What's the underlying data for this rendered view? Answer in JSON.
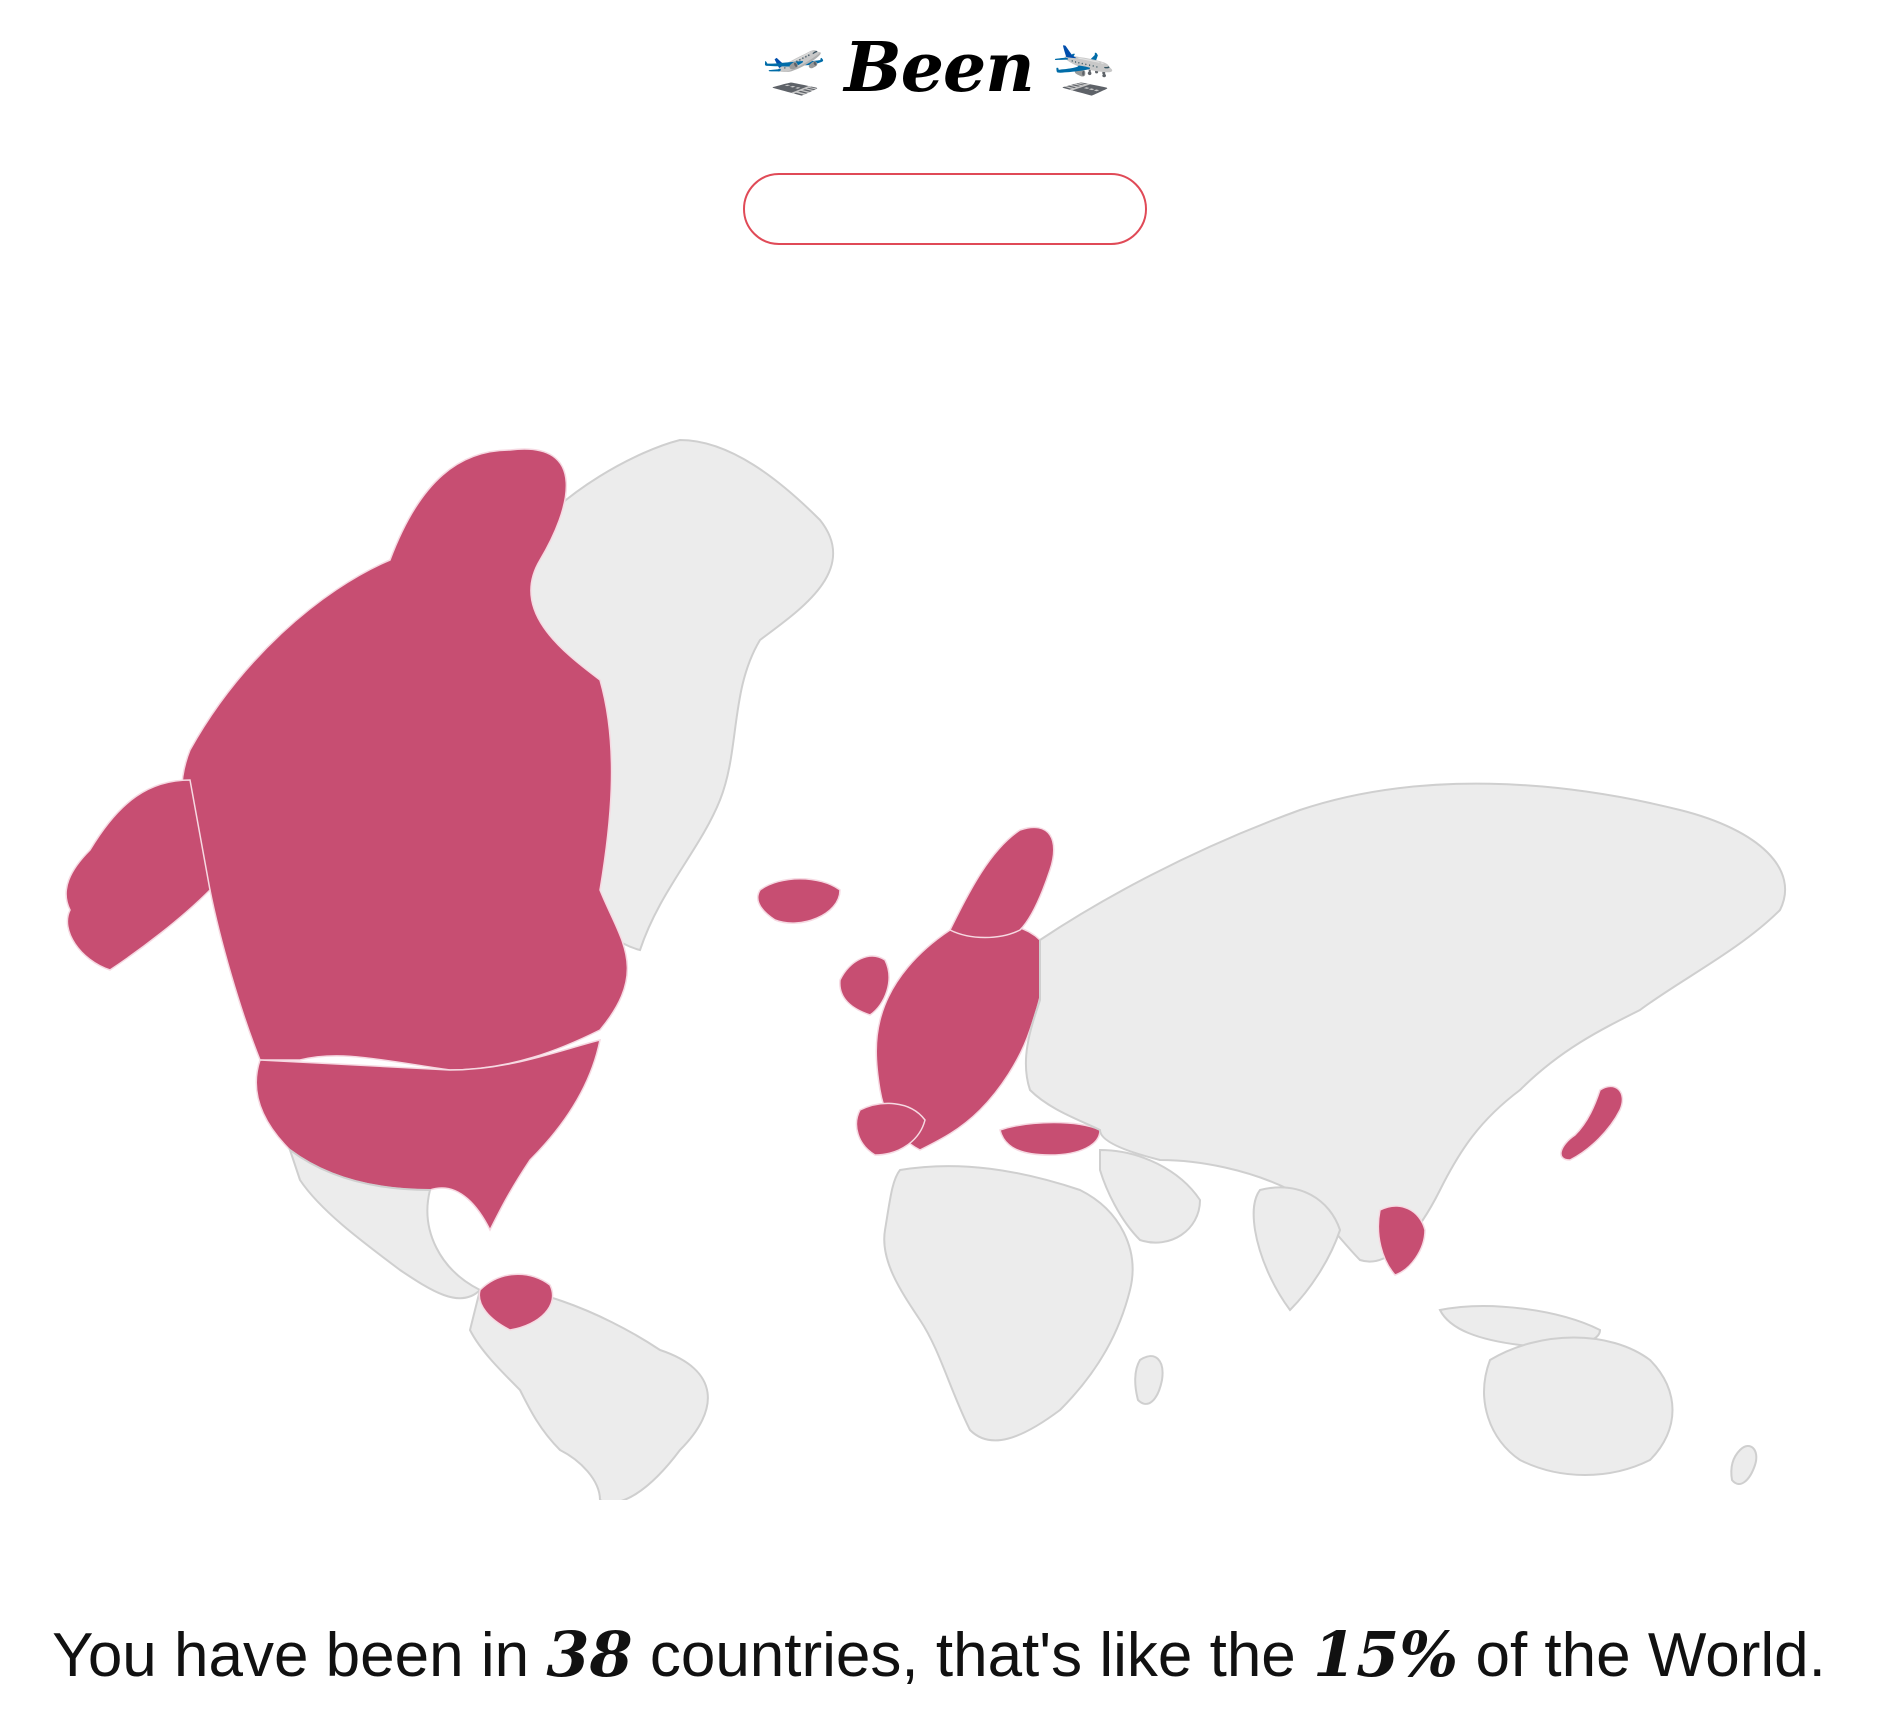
{
  "header": {
    "title": "Been",
    "left_icon": "airplane-departure-icon",
    "right_icon": "airplane-arrival-icon"
  },
  "search": {
    "value": "",
    "placeholder": ""
  },
  "map": {
    "visited_color": "#c74e72",
    "unvisited_color": "#ececec"
  },
  "summary": {
    "prefix": "You have been in",
    "count": "38",
    "middle": "countries, that's like the",
    "percent": "15%",
    "suffix": "of the World."
  }
}
